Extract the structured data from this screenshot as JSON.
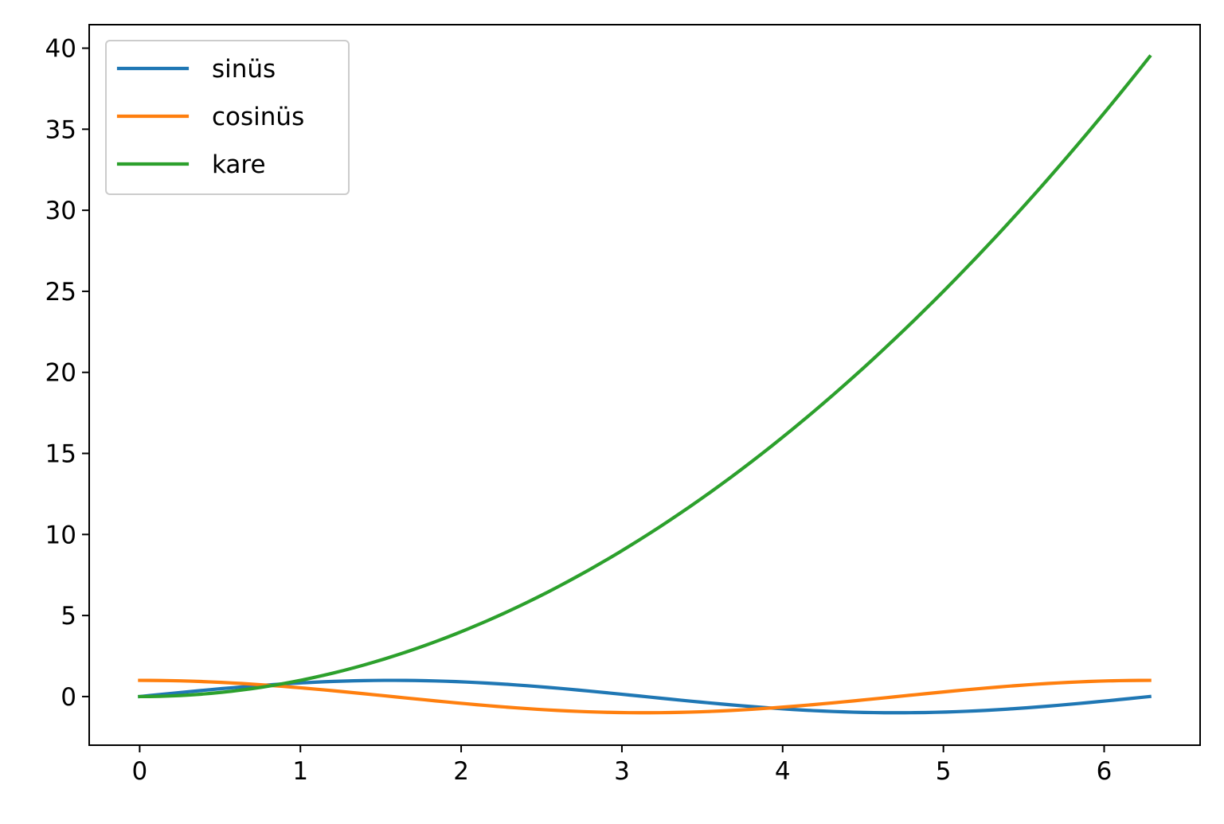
{
  "chart_data": {
    "type": "line",
    "title": "",
    "xlabel": "",
    "ylabel": "",
    "xlim": [
      -0.314,
      6.597
    ],
    "ylim": [
      -3.0,
      41.45
    ],
    "xticks": [
      "0",
      "1",
      "2",
      "3",
      "4",
      "5",
      "6"
    ],
    "yticks": [
      "0",
      "5",
      "10",
      "15",
      "20",
      "25",
      "30",
      "35",
      "40"
    ],
    "grid": false,
    "legend_position": "upper-left",
    "x_range": [
      0,
      6.283185
    ],
    "sample_count": 100,
    "series": [
      {
        "name": "sinüs",
        "color": "#1f77b4",
        "function": "sin(x)",
        "x_sampled": [
          0,
          0.785,
          1.571,
          2.356,
          3.142,
          3.927,
          4.712,
          5.498,
          6.283
        ],
        "y_sampled": [
          0,
          0.707,
          1.0,
          0.707,
          0.0,
          -0.707,
          -1.0,
          -0.707,
          0.0
        ]
      },
      {
        "name": "cosinüs",
        "color": "#ff7f0e",
        "function": "cos(x)",
        "x_sampled": [
          0,
          0.785,
          1.571,
          2.356,
          3.142,
          3.927,
          4.712,
          5.498,
          6.283
        ],
        "y_sampled": [
          1.0,
          0.707,
          0.0,
          -0.707,
          -1.0,
          -0.707,
          0.0,
          0.707,
          1.0
        ]
      },
      {
        "name": "kare",
        "color": "#2ca02c",
        "function": "x^2",
        "x_sampled": [
          0,
          1,
          2,
          3,
          4,
          5,
          6,
          6.283
        ],
        "y_sampled": [
          0,
          1,
          4,
          9,
          16,
          25,
          36,
          39.48
        ]
      }
    ]
  }
}
